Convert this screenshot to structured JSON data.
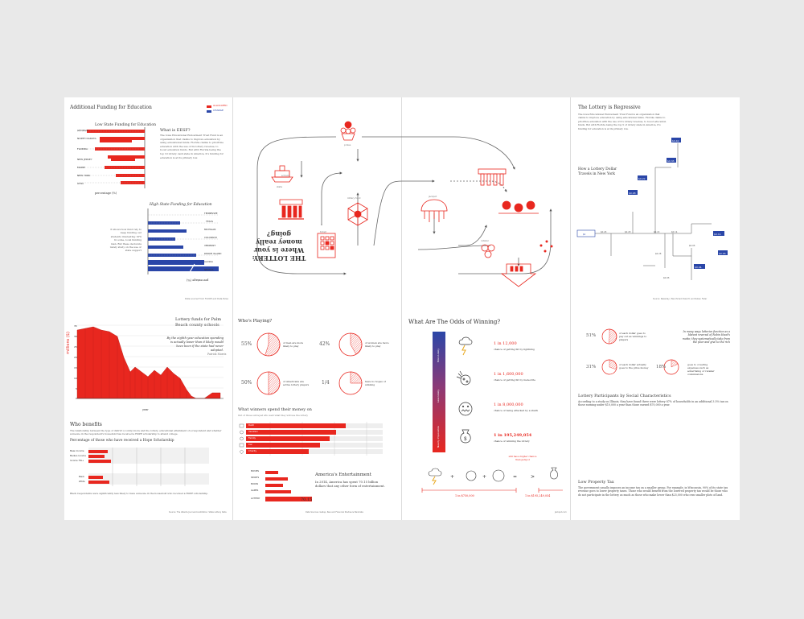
{
  "colors": {
    "red": "#e8271f",
    "blue": "#2a46a8",
    "background": "#e9e9e9",
    "paper": "#ffffff",
    "ink": "#333333"
  },
  "top_sheet": {
    "additional_funding": {
      "title": "Additional Funding for Education",
      "legend": [
        "ALLOCATED",
        "CHANGE"
      ],
      "low_state_title": "Low State Funding for Education",
      "high_state_title": "High State Funding for Education",
      "low_states": [
        "GEORGIA",
        "NORTH DAKOTA",
        "FLORIDA",
        "NEW JERSEY",
        "MAINE",
        "NEW YORK",
        "OHIO"
      ],
      "high_states": [
        "TENNESSEE",
        "TEXAS",
        "MICHIGAN",
        "COLORADO",
        "VERMONT",
        "RHODE ISLAND",
        "ALASKA",
        "NEVADA"
      ],
      "axis_label": "percentage (%)",
      "what_is_title": "What is EESF?",
      "what_is_body": "The Iowa Educational Endowment Trust Fund is an organization that claims to improve education by using educational funds. Florida claims to prioritize education with the use of its lottery revenue, to boost education funds. But with Florida being the top 10 lottery cash state in America, it's funding for education is at its primary low.",
      "side_note": "It shows how fund rely to keep funding our students interesting 10% In some, local funding man. But these decisions rarely study on the use or state support",
      "footer": "Data sourced from FLDOE and Data Pulse"
    },
    "flow": {
      "title": "THE LOTTERY: Where is your money really going?",
      "nodes": [
        "prizes",
        "schools",
        "state",
        "ticket",
        "retailer",
        "jackpot",
        "lottery fund"
      ]
    },
    "regressive": {
      "title": "The Lottery is Regressive",
      "body": "The Iowa Educational Endowment Trust Fund is an organization that claims to improve education by using educational funds. Florida claims to prioritize education with the use of it's lottery revenue, to boost education funds. But with Florida being the top 5 of lottery state in America, it's funding for education is at its primary low.",
      "travels_title": "How a Lottery Dollar Travels in New York",
      "boxes": [
        "$1",
        "$0.42",
        "$0.36",
        "$0.22",
        "$0.08",
        "$0.06",
        "$0.04",
        "$0.14",
        "$0.28"
      ],
      "footer": "Source: Newsday / Benchmark Dale M. and Ruben Fuller"
    }
  },
  "bottom_sheet": {
    "palm_beach": {
      "title": "Lottery funds for Palm Beach county schools",
      "quote": "By the eighth year education spending is actually lower than it likely would have been if the state had never adopted.",
      "quote_author": "Patrick Morris",
      "ylabel": "millions ($)",
      "xlabel": "year",
      "yticks": [
        "35",
        "30",
        "25",
        "20",
        "15",
        "10",
        "5",
        "0"
      ]
    },
    "who_benefits": {
      "title": "Who benefits",
      "body": "The relationship between the type of district (county) more and the lottery, educational attainment of a respondent and whether someone in the respondent's household has received a HOPE scholarship to attend college.",
      "subtitle": "Percentage of those who have received a Hope Scholarship",
      "rows1": [
        "Mean Income",
        "Median Income",
        "Income 75k+"
      ],
      "rows2": [
        "Black",
        "White"
      ],
      "note": "Black respondents were significantly less likely to have someone in the household who received a HOPE scholarship.",
      "footer": "Source: The Atlanta Journal-Constitution: State Lottery Data"
    },
    "whos_playing": {
      "title": "Who's Playing?",
      "stats": [
        {
          "value": "55%",
          "text": "of men are more likely to play"
        },
        {
          "value": "42%",
          "text": "of women are more likely to play"
        },
        {
          "value": "50%",
          "text": "of Americans are active lottery players"
        },
        {
          "value": "1/4",
          "text": "have no hopes of winning"
        }
      ],
      "spend_title": "What winners spend their money on",
      "spend_sub": "Out of those surveyed who said what they will use the lottery",
      "spend_items": [
        "Debt",
        "Vacation",
        "Family",
        "Car",
        "Charity"
      ],
      "ent_title": "America's Entertainment",
      "ent_body": "In 2014, America has spent 70.15 billion dollars that any other form of entertainment.",
      "ent_items": [
        "MOVIES",
        "SPORTS",
        "BOOKS",
        "GAMES",
        "LOTTERY"
      ],
      "ent_value": "70.15",
      "footer": "Data Sources: Gallup, Pew and Financial Studies & Bankrate"
    },
    "odds": {
      "title": "What Are The Odds of Winning?",
      "scale": [
        "More Likely",
        "Less Likely",
        "Nearly Impossible"
      ],
      "items": [
        {
          "odds": "1 in 12,000",
          "text": "chance of getting hit by lightning"
        },
        {
          "odds": "1 in 1,600,000",
          "text": "chance of getting hit by meteorite"
        },
        {
          "odds": "1 in 8,000,000",
          "text": "chance of being attacked by a shark"
        },
        {
          "odds": "1 in 195,249,054",
          "text": "chance of winning the lottery"
        }
      ],
      "bubble": "still has a higher chance than jackpot",
      "combo_left": "1 in $750,000",
      "combo_right": "1 in $195,249,054",
      "footer": "Jackpot.com"
    },
    "characteristics": {
      "stats": [
        {
          "value": "51%",
          "text": "of each dollar goes to pay out as winnings to players"
        },
        {
          "value": "31%",
          "text": "of each dollar actually goes to the prize money"
        },
        {
          "value": "18%",
          "text": "goes to covering expenses such as advertising or retailer commissions"
        }
      ],
      "quote": "In many ways lotteries function as a blatant reversal of Robin Hood's motto; they systematically take from the poor and give to the rich",
      "title": "Lottery Participants by Social Characteristics",
      "body": "According to a study on Illinois, they have found there were lottery 87% of households in an additional 3.5% tax on those earning under $10,000 a year than those earned $70,000 a year.",
      "low_tax_title": "Low Property Tax",
      "low_tax_body": "The government usually imposes an income tax on a smaller group. For example, in Wisconsin, 90% of its state tax revenue goes to lower property taxes. Those who would benefit from the lowered property tax would be those who do not participate in the lottery as much as those who make lower than $25,000 who own smaller plots of land."
    }
  }
}
